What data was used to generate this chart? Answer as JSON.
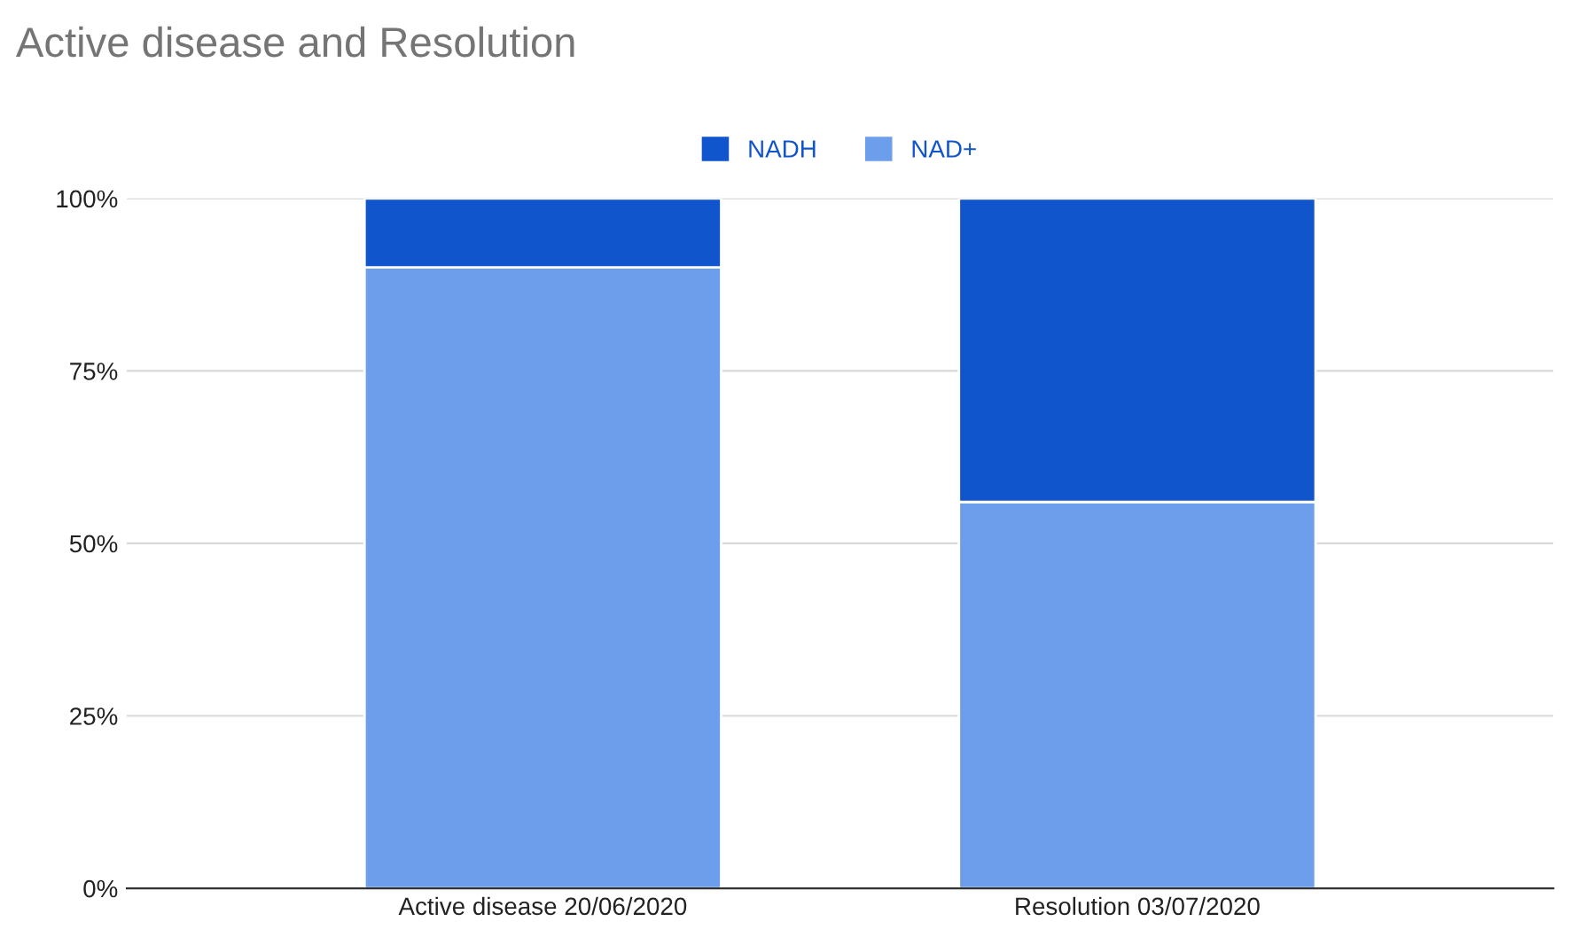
{
  "chart_data": {
    "type": "bar",
    "title": "Active disease and Resolution",
    "categories": [
      "Active disease 20/06/2020",
      "Resolution 03/07/2020"
    ],
    "stacked": true,
    "series": [
      {
        "name": "NAD+",
        "color": "#6d9eeb",
        "values": [
          90,
          56
        ]
      },
      {
        "name": "NADH",
        "color": "#1155cc",
        "values": [
          10,
          44
        ]
      }
    ],
    "ylim": [
      0,
      100
    ],
    "yticks": [
      {
        "value": 0,
        "label": "0%"
      },
      {
        "value": 25,
        "label": "25%"
      },
      {
        "value": 50,
        "label": "50%"
      },
      {
        "value": 75,
        "label": "75%"
      },
      {
        "value": 100,
        "label": "100%"
      }
    ],
    "grid": "y",
    "legend": "top"
  }
}
